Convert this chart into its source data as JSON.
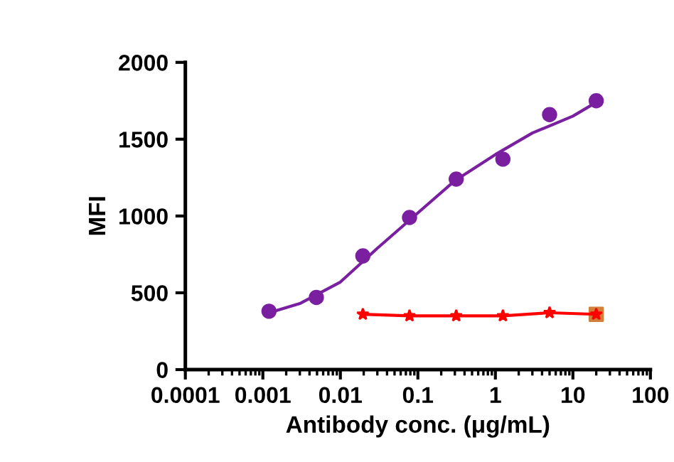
{
  "chart_data": {
    "type": "scatter",
    "xlabel": "Antibody conc. (μg/mL)",
    "ylabel": "MFI",
    "log": "x",
    "grid": false,
    "legend": false,
    "xlim": [
      0.0001,
      100
    ],
    "xticks": [
      0.0001,
      0.001,
      0.01,
      0.1,
      1,
      10,
      100
    ],
    "ylim": [
      0,
      2000
    ],
    "yticks": [
      0,
      500,
      1000,
      1500,
      2000
    ],
    "series": [
      {
        "type": "line",
        "color": "#7a1fa0",
        "marker": "none",
        "x": [
          0.0012,
          0.003,
          0.01,
          0.03,
          0.1,
          0.3,
          1,
          3,
          10,
          20
        ],
        "values": [
          370,
          430,
          570,
          790,
          1020,
          1230,
          1400,
          1540,
          1650,
          1740
        ]
      },
      {
        "color": "#7a1fa0",
        "marker": "circle",
        "x": [
          0.0012,
          0.0049,
          0.0195,
          0.078,
          0.3125,
          1.25,
          5,
          20
        ],
        "values": [
          380,
          470,
          740,
          990,
          1240,
          1370,
          1660,
          1750
        ]
      },
      {
        "type": "line",
        "color": "#ff0000",
        "marker": "star",
        "x": [
          0.0195,
          0.078,
          0.3125,
          1.25,
          5,
          20
        ],
        "values": [
          360,
          350,
          350,
          350,
          370,
          360
        ]
      },
      {
        "color": "#d0803a",
        "marker": "square",
        "x": [
          20
        ],
        "values": [
          360
        ]
      }
    ]
  }
}
